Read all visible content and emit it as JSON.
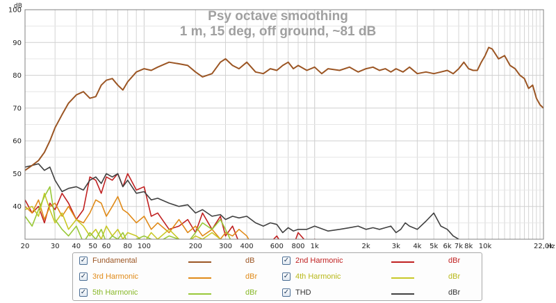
{
  "chart_data": {
    "type": "line",
    "title": "Psy octave smoothing",
    "subtitle": "1 m, 15 deg, off ground, ~81 dB",
    "y_unit": "dB",
    "x_unit": "Hz",
    "xscale": "log",
    "xlim": [
      20,
      22000
    ],
    "ylim": [
      30,
      100
    ],
    "y_ticks": [
      {
        "v": 100,
        "label": "100"
      },
      {
        "v": 90,
        "label": "90"
      },
      {
        "v": 80,
        "label": "80"
      },
      {
        "v": 70,
        "label": "70"
      },
      {
        "v": 60,
        "label": "60"
      },
      {
        "v": 50,
        "label": "50"
      },
      {
        "v": 40,
        "label": "40"
      }
    ],
    "x_ticks": [
      {
        "v": 20,
        "label": "20"
      },
      {
        "v": 30,
        "label": "30"
      },
      {
        "v": 40,
        "label": "40"
      },
      {
        "v": 50,
        "label": "50"
      },
      {
        "v": 60,
        "label": "60"
      },
      {
        "v": 80,
        "label": "80"
      },
      {
        "v": 100,
        "label": "100"
      },
      {
        "v": 200,
        "label": "200"
      },
      {
        "v": 300,
        "label": "300"
      },
      {
        "v": 400,
        "label": "400"
      },
      {
        "v": 600,
        "label": "600"
      },
      {
        "v": 800,
        "label": "800"
      },
      {
        "v": 1000,
        "label": "1k"
      },
      {
        "v": 2000,
        "label": "2k"
      },
      {
        "v": 3000,
        "label": "3k"
      },
      {
        "v": 4000,
        "label": "4k"
      },
      {
        "v": 5000,
        "label": "5k"
      },
      {
        "v": 6000,
        "label": "6k"
      },
      {
        "v": 7000,
        "label": "7k"
      },
      {
        "v": 8000,
        "label": "8k"
      },
      {
        "v": 10000,
        "label": "10k"
      },
      {
        "v": 22000,
        "label": "22,0k"
      }
    ],
    "grid": true,
    "legend_position": "bottom",
    "series": [
      {
        "name": "Fundamental",
        "unit": "dB",
        "color": "#9b5523",
        "x": [
          20,
          22,
          24,
          26,
          28,
          30,
          33,
          36,
          40,
          44,
          48,
          52,
          56,
          60,
          65,
          70,
          75,
          80,
          90,
          100,
          110,
          120,
          140,
          160,
          180,
          200,
          220,
          250,
          280,
          300,
          330,
          360,
          400,
          450,
          500,
          550,
          600,
          650,
          700,
          750,
          800,
          900,
          1000,
          1100,
          1200,
          1400,
          1600,
          1800,
          2000,
          2200,
          2400,
          2600,
          2800,
          3000,
          3300,
          3600,
          4000,
          4500,
          5000,
          5500,
          6000,
          6500,
          7000,
          7500,
          8000,
          8500,
          9000,
          9500,
          10000,
          10500,
          11000,
          12000,
          13000,
          14000,
          15000,
          16000,
          17000,
          18000,
          19000,
          20000,
          21000,
          22000
        ],
        "y": [
          51,
          52.5,
          54,
          56.5,
          60,
          64,
          68,
          71.5,
          74,
          75,
          73,
          73.5,
          77,
          78.5,
          79,
          77,
          75.5,
          78,
          81,
          82,
          81.5,
          82.5,
          84,
          83.5,
          83,
          81,
          79.5,
          80.5,
          84,
          85,
          83,
          82,
          84,
          81,
          80.5,
          82,
          81.5,
          83,
          84,
          82,
          83,
          81.5,
          82.5,
          80.5,
          82,
          81.5,
          82.5,
          81,
          82,
          82.5,
          81.5,
          82,
          81,
          82,
          81,
          82.5,
          80.5,
          81,
          80.5,
          81,
          81.5,
          80.5,
          82,
          84,
          82,
          81.5,
          81.5,
          84,
          86,
          88.5,
          88,
          85,
          86,
          83,
          82,
          80,
          79,
          76,
          77,
          73,
          71,
          70
        ]
      },
      {
        "name": "2nd Harmonic",
        "unit": "dBr",
        "color": "#c02020",
        "x": [
          20,
          22,
          24,
          26,
          28,
          30,
          33,
          36,
          40,
          44,
          48,
          52,
          56,
          60,
          65,
          70,
          75,
          80,
          90,
          100,
          110,
          120,
          140,
          160,
          180,
          200,
          220,
          250,
          280,
          300,
          330,
          360,
          400,
          450,
          500,
          550,
          600,
          650,
          700,
          750,
          800,
          900,
          1000,
          1200,
          1400
        ],
        "y": [
          42,
          38,
          40,
          35,
          41,
          39,
          44,
          41,
          36,
          39,
          49,
          48,
          44,
          49,
          48,
          50,
          46,
          50,
          45,
          46,
          37,
          38,
          33,
          34,
          36,
          32,
          38,
          33,
          37,
          31,
          34,
          29,
          28,
          29,
          28,
          29,
          31,
          28,
          30,
          28,
          32,
          29,
          30,
          29,
          29
        ]
      },
      {
        "name": "3rd Harmonic",
        "unit": "dBr",
        "color": "#e08a18",
        "x": [
          20,
          22,
          24,
          26,
          28,
          30,
          33,
          36,
          40,
          44,
          48,
          52,
          56,
          60,
          65,
          70,
          75,
          80,
          90,
          100,
          110,
          120,
          140,
          160,
          180,
          200,
          220,
          250,
          280,
          300,
          330,
          360,
          400,
          420
        ],
        "y": [
          40,
          38,
          42,
          36,
          40,
          41,
          37,
          40,
          36,
          35,
          38,
          42,
          41,
          37,
          40,
          43,
          39,
          38,
          35,
          37,
          33,
          35,
          32,
          36,
          32,
          34,
          31,
          33,
          30,
          32,
          31,
          33,
          31,
          29
        ]
      },
      {
        "name": "4th Harmonic",
        "unit": "dBr",
        "color": "#c8c826",
        "x": [
          20,
          22,
          24,
          26,
          28,
          30,
          33,
          36,
          40,
          44,
          48,
          52,
          56,
          60,
          65,
          70,
          75,
          80,
          90,
          100,
          110,
          120,
          140,
          160,
          180,
          200,
          220,
          250,
          280,
          300,
          320
        ],
        "y": [
          39,
          40,
          37,
          44,
          39,
          35,
          38,
          33,
          36,
          34,
          31,
          33,
          30,
          34,
          31,
          33,
          30,
          32,
          31,
          29,
          32,
          30,
          33,
          30,
          29,
          31,
          30,
          32,
          30,
          29,
          30
        ]
      },
      {
        "name": "5th Harmonic",
        "unit": "dBr",
        "color": "#98c838",
        "x": [
          20,
          22,
          24,
          26,
          28,
          30,
          33,
          36,
          40,
          44,
          48,
          52,
          56,
          60,
          65,
          70,
          75,
          80,
          90,
          100,
          110,
          120,
          140,
          160,
          180,
          200,
          220,
          250,
          280,
          300,
          320,
          360
        ],
        "y": [
          37,
          34,
          39,
          43,
          46,
          36,
          33,
          31,
          34,
          29,
          32,
          30,
          33,
          29,
          31,
          30,
          32,
          29,
          30,
          31,
          30,
          29,
          31,
          30,
          29,
          32,
          35,
          33,
          36,
          33,
          30,
          29
        ]
      },
      {
        "name": "THD",
        "unit": "dBr",
        "color": "#404040",
        "x": [
          20,
          22,
          24,
          26,
          28,
          30,
          33,
          36,
          40,
          44,
          48,
          52,
          56,
          60,
          65,
          70,
          75,
          80,
          90,
          100,
          110,
          120,
          140,
          160,
          180,
          200,
          220,
          250,
          280,
          300,
          330,
          360,
          400,
          450,
          500,
          550,
          600,
          650,
          700,
          750,
          800,
          900,
          1000,
          1200,
          1400,
          1600,
          1800,
          2000,
          2200,
          2400,
          2600,
          2800,
          3000,
          3200,
          3400,
          3600,
          4000,
          4500,
          5000,
          5500,
          6000,
          6500,
          7000
        ],
        "y": [
          52,
          52.5,
          53,
          51,
          52,
          48,
          44.5,
          45.5,
          46,
          45,
          48,
          49,
          47,
          50,
          49,
          50,
          46,
          48,
          44,
          44.5,
          42,
          42.5,
          41,
          40,
          40.5,
          38,
          39,
          37,
          37.5,
          36,
          37,
          36.5,
          37,
          35,
          34,
          35,
          34.5,
          32,
          33.5,
          32.5,
          33,
          33,
          34,
          32.5,
          33,
          33.5,
          34,
          33,
          33.5,
          33,
          33.5,
          34,
          32,
          33,
          35,
          34,
          33,
          35.5,
          38,
          34,
          33,
          31,
          30
        ]
      }
    ]
  }
}
